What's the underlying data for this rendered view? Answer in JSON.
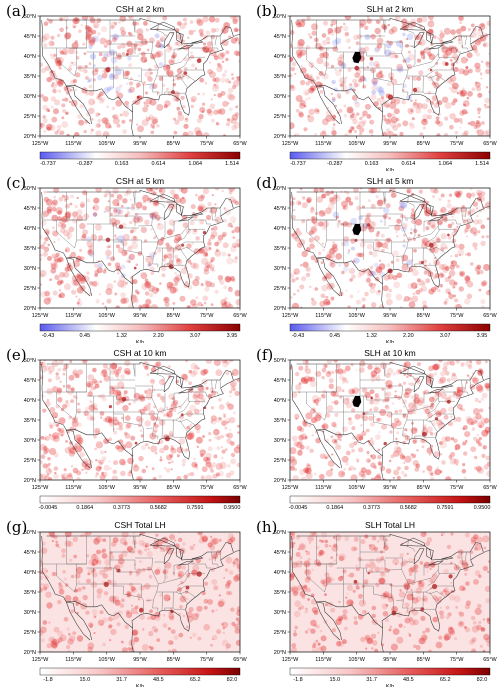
{
  "lon_labels": [
    "125°W",
    "115°W",
    "105°W",
    "95°W",
    "85°W",
    "75°W",
    "65°W"
  ],
  "lat_labels": [
    "50°N",
    "45°N",
    "40°N",
    "35°N",
    "30°N",
    "25°N",
    "20°N"
  ],
  "panels": [
    {
      "label": "(a)",
      "title": "CSH at 2 km",
      "scale": "div",
      "ticks": [
        "-0.737",
        "-0.287",
        "0.163",
        "0.614",
        "1.064",
        "1.514"
      ],
      "unit": ""
    },
    {
      "label": "(b)",
      "title": "SLH at 2 km",
      "scale": "div",
      "ticks": [
        "-0.737",
        "-0.287",
        "0.163",
        "0.614",
        "1.064",
        "1.514"
      ],
      "unit": "K/h"
    },
    {
      "label": "(c)",
      "title": "CSH at 5 km",
      "scale": "div",
      "ticks": [
        "-0.43",
        "0.45",
        "1.32",
        "2.20",
        "3.07",
        "3.95"
      ],
      "unit": "K/h"
    },
    {
      "label": "(d)",
      "title": "SLH at 5 km",
      "scale": "div",
      "ticks": [
        "-0.43",
        "0.45",
        "1.32",
        "2.20",
        "3.07",
        "3.95"
      ],
      "unit": "K/h"
    },
    {
      "label": "(e)",
      "title": "CSH at 10 km",
      "scale": "seq",
      "ticks": [
        "-0.0045",
        "0.1864",
        "0.3773",
        "0.5682",
        "0.7591",
        "0.9500"
      ],
      "unit": ""
    },
    {
      "label": "(f)",
      "title": "SLH at 10 km",
      "scale": "seq",
      "ticks": [
        "-0.0045",
        "0.1864",
        "0.3773",
        "0.5682",
        "0.7591",
        "0.9500"
      ],
      "unit": ""
    },
    {
      "label": "(g)",
      "title": "CSH Total LH",
      "scale": "seq",
      "ticks": [
        "-1.8",
        "15.0",
        "31.7",
        "48.5",
        "65.2",
        "82.0"
      ],
      "unit": "K/h"
    },
    {
      "label": "(h)",
      "title": "SLH Total LH",
      "scale": "seq",
      "ticks": [
        "-1.8",
        "15.0",
        "31.7",
        "48.5",
        "65.2",
        "82.0"
      ],
      "unit": "K/h"
    }
  ]
}
